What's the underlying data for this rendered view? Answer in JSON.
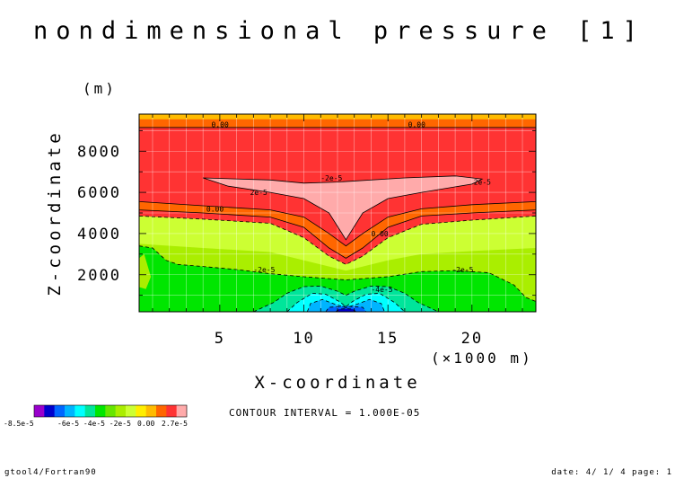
{
  "chart_data": {
    "type": "heatmap",
    "title": "nondimensional pressure [1]",
    "xlabel": "X-coordinate",
    "ylabel": "Z-coordinate",
    "x_unit": "(×1000 m)",
    "y_unit": "(m)",
    "xlim": [
      0.2,
      23.8
    ],
    "ylim": [
      200,
      9800
    ],
    "x_ticks": [
      5,
      10,
      15,
      20
    ],
    "y_ticks": [
      2000,
      4000,
      6000,
      8000
    ],
    "grid": true,
    "contour_interval_text": "CONTOUR INTERVAL = 1.000E-05",
    "colorbar": {
      "min_label": "-8.5e-5",
      "mid_label": "-6e-5 -4e-5 -2e-5",
      "zero_label": "0.00",
      "max_label": "2.7e-5",
      "colors": [
        "#9900cc",
        "#0000cc",
        "#0066ff",
        "#00b4ff",
        "#00ffff",
        "#00e59a",
        "#00e600",
        "#66e600",
        "#aaee00",
        "#ccff33",
        "#ffee00",
        "#ffbb00",
        "#ff6600",
        "#ff3333",
        "#ffaaaa"
      ]
    },
    "fill_colors": {
      "c1": "#ffaaaa",
      "c2": "#ff3333",
      "c3": "#ff6600",
      "c4": "#ffbb00",
      "c5": "#ccff33",
      "c6": "#aaee00",
      "c7": "#00e600",
      "c8": "#00e59a",
      "c9": "#00ffff",
      "c10": "#00b4ff",
      "c11": "#0066ff",
      "c12": "#0000cc"
    },
    "regions": [
      {
        "name": "orange-band",
        "color": "c3",
        "level": 0.0,
        "points": [
          [
            0.2,
            5150
          ],
          [
            4,
            5000
          ],
          [
            8,
            4800
          ],
          [
            10,
            4300
          ],
          [
            11.5,
            3300
          ],
          [
            12.5,
            2800
          ],
          [
            13.5,
            3300
          ],
          [
            15,
            4300
          ],
          [
            17,
            4850
          ],
          [
            20,
            5000
          ],
          [
            23.8,
            5150
          ],
          [
            23.8,
            9800
          ],
          [
            0.2,
            9800
          ]
        ]
      },
      {
        "name": "red-core",
        "color": "c2",
        "level": 1e-05,
        "points": [
          [
            0.2,
            5550
          ],
          [
            4,
            5350
          ],
          [
            8,
            5150
          ],
          [
            10,
            4800
          ],
          [
            11.5,
            4000
          ],
          [
            12.5,
            3400
          ],
          [
            13.5,
            4000
          ],
          [
            15,
            4800
          ],
          [
            17,
            5200
          ],
          [
            20,
            5400
          ],
          [
            23.8,
            5550
          ],
          [
            23.8,
            9150
          ],
          [
            0.2,
            9150
          ]
        ]
      },
      {
        "name": "yellow-top",
        "color": "c4",
        "points": [
          [
            0.2,
            9550
          ],
          [
            23.8,
            9550
          ],
          [
            23.8,
            9800
          ],
          [
            0.2,
            9800
          ]
        ]
      },
      {
        "name": "pink-max",
        "color": "c1",
        "level": 2e-05,
        "points": [
          [
            4,
            6700
          ],
          [
            8,
            6600
          ],
          [
            10,
            6450
          ],
          [
            12,
            6500
          ],
          [
            16,
            6700
          ],
          [
            19,
            6800
          ],
          [
            20.6,
            6650
          ],
          [
            20,
            6400
          ],
          [
            17,
            6000
          ],
          [
            15,
            5700
          ],
          [
            13.5,
            5000
          ],
          [
            12.5,
            3700
          ],
          [
            11.5,
            5000
          ],
          [
            10,
            5700
          ],
          [
            8,
            6000
          ],
          [
            5.5,
            6300
          ]
        ]
      },
      {
        "name": "yellow-green-low",
        "color": "c5",
        "level": -1e-05,
        "points": [
          [
            0.2,
            4850
          ],
          [
            4,
            4700
          ],
          [
            8,
            4500
          ],
          [
            10,
            3800
          ],
          [
            11.5,
            2900
          ],
          [
            12.5,
            2500
          ],
          [
            13.5,
            2900
          ],
          [
            15,
            3800
          ],
          [
            17,
            4450
          ],
          [
            20,
            4650
          ],
          [
            23.8,
            4850
          ],
          [
            23.8,
            200
          ],
          [
            0.2,
            200
          ]
        ]
      },
      {
        "name": "light-green",
        "color": "c6",
        "points": [
          [
            0.2,
            3500
          ],
          [
            4,
            3300
          ],
          [
            8,
            3100
          ],
          [
            10,
            2700
          ],
          [
            12.5,
            2200
          ],
          [
            15,
            2700
          ],
          [
            17,
            3000
          ],
          [
            20,
            3150
          ],
          [
            23.8,
            3300
          ],
          [
            23.8,
            200
          ],
          [
            0.2,
            200
          ]
        ]
      },
      {
        "name": "green-low",
        "color": "c7",
        "level": -2e-05,
        "points": [
          [
            0.2,
            3400
          ],
          [
            1,
            3300
          ],
          [
            1.8,
            2700
          ],
          [
            2.5,
            2500
          ],
          [
            4,
            2400
          ],
          [
            6,
            2250
          ],
          [
            8,
            2050
          ],
          [
            10,
            1900
          ],
          [
            12.5,
            1750
          ],
          [
            15,
            1900
          ],
          [
            17,
            2150
          ],
          [
            19,
            2200
          ],
          [
            21,
            2100
          ],
          [
            22.5,
            1500
          ],
          [
            23.2,
            900
          ],
          [
            23.8,
            700
          ],
          [
            23.8,
            200
          ],
          [
            0.2,
            200
          ]
        ]
      },
      {
        "name": "teal-low",
        "color": "c8",
        "level": -3e-05,
        "points": [
          [
            7,
            200
          ],
          [
            8.2,
            650
          ],
          [
            9,
            1100
          ],
          [
            10,
            1420
          ],
          [
            11,
            1450
          ],
          [
            12,
            1200
          ],
          [
            12.5,
            1000
          ],
          [
            13,
            1200
          ],
          [
            14,
            1450
          ],
          [
            15,
            1420
          ],
          [
            16,
            1100
          ],
          [
            16.8,
            650
          ],
          [
            18,
            200
          ]
        ]
      },
      {
        "name": "cyan-low",
        "color": "c9",
        "level": -4e-05,
        "points": [
          [
            9,
            200
          ],
          [
            9.6,
            650
          ],
          [
            10.5,
            1100
          ],
          [
            11.3,
            1050
          ],
          [
            12.1,
            700
          ],
          [
            12.5,
            450
          ],
          [
            12.9,
            700
          ],
          [
            13.7,
            1050
          ],
          [
            14.5,
            1100
          ],
          [
            15.4,
            650
          ],
          [
            16,
            200
          ]
        ]
      },
      {
        "name": "sky-low",
        "color": "c10",
        "level": -5e-05,
        "points": [
          [
            10.2,
            200
          ],
          [
            10.4,
            600
          ],
          [
            11.1,
            800
          ],
          [
            11.8,
            580
          ],
          [
            12.5,
            400
          ],
          [
            13.2,
            580
          ],
          [
            13.9,
            800
          ],
          [
            14.6,
            600
          ],
          [
            14.8,
            200
          ]
        ]
      },
      {
        "name": "blue-low",
        "color": "c11",
        "level": -6e-05,
        "points": [
          [
            11.3,
            200
          ],
          [
            11.5,
            420
          ],
          [
            12.5,
            470
          ],
          [
            13.5,
            420
          ],
          [
            13.7,
            200
          ]
        ]
      },
      {
        "name": "navy-low",
        "color": "c12",
        "level": -7e-05,
        "points": [
          [
            11.9,
            200
          ],
          [
            12.1,
            330
          ],
          [
            12.5,
            350
          ],
          [
            12.9,
            330
          ],
          [
            13.1,
            200
          ]
        ]
      },
      {
        "name": "green-left-pocket",
        "color": "c6",
        "points": [
          [
            0.2,
            1400
          ],
          [
            0.6,
            1300
          ],
          [
            0.9,
            1900
          ],
          [
            0.5,
            3000
          ],
          [
            0.2,
            2800
          ]
        ]
      }
    ],
    "contours": [
      {
        "name": "zero-top",
        "dashed": false,
        "points": [
          [
            0.2,
            9150
          ],
          [
            23.8,
            9150
          ]
        ]
      }
    ],
    "contour_labels": [
      {
        "text": "0.00",
        "x": 4.5,
        "y": 9300
      },
      {
        "text": "0.00",
        "x": 16.2,
        "y": 9300
      },
      {
        "text": "-2e-5",
        "x": 11,
        "y": 6700
      },
      {
        "text": "2e-5",
        "x": 6.8,
        "y": 6000
      },
      {
        "text": "2e-5",
        "x": 20.1,
        "y": 6500
      },
      {
        "text": "0.00",
        "x": 4.2,
        "y": 5200
      },
      {
        "text": "0.00",
        "x": 14,
        "y": 4000
      },
      {
        "text": "-2e-5",
        "x": 7,
        "y": 2250
      },
      {
        "text": "-2e-5",
        "x": 18.8,
        "y": 2250
      },
      {
        "text": "-4e-5",
        "x": 14,
        "y": 1300
      }
    ]
  },
  "footer": {
    "left": "gtool4/Fortran90",
    "right": "date: 4/ 1/ 4 page: 1"
  }
}
